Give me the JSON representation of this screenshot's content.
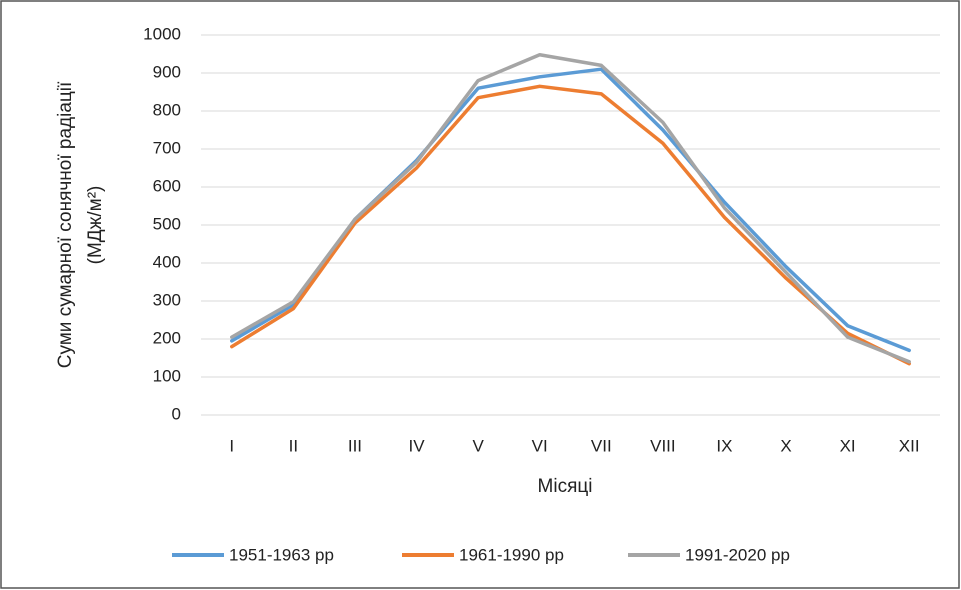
{
  "chart_data": {
    "type": "line",
    "x_label": "Місяці",
    "y_label": [
      "Суми сумарної сонячної радіації",
      "(МДж/м²)"
    ],
    "categories": [
      "I",
      "II",
      "III",
      "IV",
      "V",
      "VI",
      "VII",
      "VIII",
      "IX",
      "X",
      "XI",
      "XII"
    ],
    "series": [
      {
        "name": "1951-1963 рр",
        "color": "#5b9bd5",
        "values": [
          195,
          290,
          515,
          670,
          860,
          890,
          910,
          750,
          560,
          390,
          235,
          170
        ]
      },
      {
        "name": "1961-1990 рр",
        "color": "#ed7d31",
        "values": [
          180,
          280,
          505,
          650,
          835,
          865,
          845,
          715,
          520,
          360,
          215,
          135
        ]
      },
      {
        "name": "1991-2020 рр",
        "color": "#a5a5a5",
        "values": [
          205,
          298,
          515,
          665,
          880,
          948,
          920,
          770,
          545,
          375,
          205,
          140
        ]
      }
    ],
    "ylim": [
      0,
      1000
    ],
    "yticks": [
      0,
      100,
      200,
      300,
      400,
      500,
      600,
      700,
      800,
      900,
      1000
    ],
    "grid": true,
    "legend": "bottom"
  }
}
